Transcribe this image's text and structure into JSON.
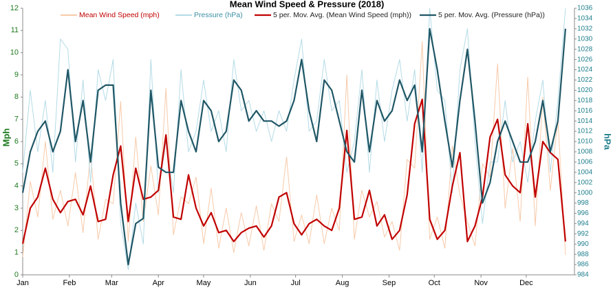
{
  "chart_data": {
    "type": "line",
    "title": "Mean Wind Speed & Pressure (2018)",
    "y_label": "Mph",
    "y2_label": "hPa",
    "x": [
      1,
      6,
      11,
      16,
      21,
      26,
      31,
      36,
      41,
      46,
      51,
      56,
      61,
      66,
      71,
      76,
      81,
      86,
      91,
      96,
      101,
      106,
      111,
      116,
      121,
      126,
      131,
      136,
      141,
      146,
      151,
      156,
      161,
      166,
      171,
      176,
      181,
      186,
      191,
      196,
      201,
      206,
      211,
      216,
      221,
      226,
      231,
      236,
      241,
      246,
      251,
      256,
      261,
      266,
      271,
      276,
      281,
      286,
      291,
      296,
      301,
      306,
      311,
      316,
      321,
      326,
      331,
      336,
      341,
      346,
      351,
      356,
      361
    ],
    "xlim": [
      1,
      367
    ],
    "xticks": [
      {
        "value": 1,
        "label": "Jan"
      },
      {
        "value": 32,
        "label": "Feb"
      },
      {
        "value": 60,
        "label": "Mar"
      },
      {
        "value": 91,
        "label": "Apr"
      },
      {
        "value": 121,
        "label": "May"
      },
      {
        "value": 152,
        "label": "Jun"
      },
      {
        "value": 182,
        "label": "Jul"
      },
      {
        "value": 213,
        "label": "Aug"
      },
      {
        "value": 244,
        "label": "Sep"
      },
      {
        "value": 274,
        "label": "Oct"
      },
      {
        "value": 305,
        "label": "Nov"
      },
      {
        "value": 335,
        "label": "Dec"
      }
    ],
    "ylim": [
      0,
      12
    ],
    "yticks": [
      0,
      1,
      2,
      3,
      4,
      5,
      6,
      7,
      8,
      9,
      10,
      11,
      12
    ],
    "y2lim": [
      984,
      1036
    ],
    "y2ticks": [
      984,
      986,
      988,
      990,
      992,
      994,
      996,
      998,
      1000,
      1002,
      1004,
      1006,
      1008,
      1010,
      1012,
      1014,
      1016,
      1018,
      1020,
      1022,
      1024,
      1026,
      1028,
      1030,
      1032,
      1034,
      1036
    ],
    "grid": false,
    "legend": "top",
    "series": [
      {
        "name": "Mean Wind Speed (mph)",
        "color": "#f7c9a8",
        "width": 1,
        "values": [
          0.8,
          4.2,
          2.6,
          6.0,
          2.5,
          3.8,
          2.2,
          4.6,
          1.9,
          5.5,
          1.6,
          3.4,
          3.2,
          7.8,
          1.5,
          6.2,
          2.4,
          4.9,
          2.7,
          8.4,
          1.8,
          3.5,
          3.2,
          4.4,
          1.4,
          3.9,
          1.2,
          3.0,
          1.0,
          2.8,
          1.3,
          3.1,
          1.1,
          3.2,
          2.4,
          5.3,
          1.5,
          2.7,
          1.4,
          3.6,
          1.4,
          3.0,
          2.0,
          9.0,
          1.6,
          3.8,
          2.6,
          3.3,
          1.7,
          2.4,
          1.1,
          5.2,
          4.8,
          10.5,
          1.6,
          2.6,
          1.2,
          5.8,
          3.6,
          2.4,
          1.3,
          5.0,
          4.4,
          9.5,
          3.0,
          5.7,
          2.4,
          8.9,
          2.2,
          8.0,
          3.8,
          7.0,
          0.9
        ]
      },
      {
        "name": "Pressure (hPa)",
        "color": "#b3dbe6",
        "width": 1,
        "axis": "y2",
        "values": [
          1004,
          1020,
          1008,
          1018,
          1004,
          1030,
          1028,
          1006,
          1022,
          1002,
          1024,
          1018,
          1026,
          994,
          985,
          998,
          990,
          1026,
          1000,
          1010,
          1000,
          1024,
          1008,
          1012,
          1022,
          1012,
          1016,
          1008,
          1026,
          1016,
          1018,
          1012,
          1016,
          1010,
          1016,
          1012,
          1022,
          1030,
          1012,
          1014,
          1026,
          1016,
          1018,
          1004,
          1010,
          1024,
          1004,
          1022,
          1010,
          1020,
          1026,
          1014,
          1024,
          1004,
          1036,
          1020,
          1018,
          1000,
          1024,
          1032,
          1010,
          994,
          1006,
          1006,
          1018,
          1006,
          1010,
          1002,
          1014,
          1022,
          1004,
          1018,
          1036
        ]
      },
      {
        "name": "5 per. Mov. Avg. (Mean Wind Speed (mph))",
        "color": "#c00000",
        "width": 2.2,
        "values": [
          1.4,
          3.0,
          3.5,
          4.8,
          3.4,
          2.8,
          3.3,
          3.4,
          2.7,
          4.0,
          2.4,
          2.5,
          4.5,
          5.8,
          2.4,
          4.8,
          3.4,
          3.5,
          3.8,
          6.3,
          2.6,
          2.5,
          4.5,
          3.0,
          2.2,
          2.8,
          1.9,
          2.0,
          1.5,
          1.9,
          2.1,
          2.2,
          1.7,
          2.2,
          3.5,
          3.7,
          2.3,
          1.8,
          2.3,
          2.5,
          2.2,
          2.0,
          3.0,
          6.5,
          2.5,
          2.6,
          3.8,
          2.2,
          2.7,
          1.6,
          2.0,
          3.6,
          6.8,
          7.9,
          2.5,
          1.6,
          2.0,
          4.0,
          5.5,
          1.5,
          2.2,
          3.5,
          6.2,
          7.0,
          4.5,
          4.0,
          3.7,
          6.8,
          3.5,
          6.0,
          5.5,
          5.2,
          1.5
        ]
      },
      {
        "name": "5 per. Mov. Avg. (Pressure (hPa))",
        "color": "#1f5665",
        "width": 2.2,
        "axis": "y2",
        "values": [
          1000,
          1008,
          1012,
          1014,
          1008,
          1012,
          1024,
          1010,
          1018,
          1006,
          1020,
          1021,
          1021,
          998,
          986,
          994,
          995,
          1020,
          1005,
          1004,
          1004,
          1018,
          1012,
          1008,
          1018,
          1016,
          1010,
          1012,
          1022,
          1020,
          1014,
          1016,
          1014,
          1014,
          1013,
          1014,
          1018,
          1026,
          1016,
          1010,
          1022,
          1020,
          1014,
          1008,
          1006,
          1020,
          1008,
          1018,
          1014,
          1016,
          1022,
          1018,
          1021,
          1008,
          1032,
          1024,
          1014,
          1005,
          1018,
          1028,
          1014,
          998,
          1002,
          1010,
          1014,
          1010,
          1006,
          1006,
          1010,
          1018,
          1008,
          1014,
          1032
        ]
      }
    ],
    "y_color": "#1e7a1e",
    "y2_color": "#1f7f8c"
  }
}
